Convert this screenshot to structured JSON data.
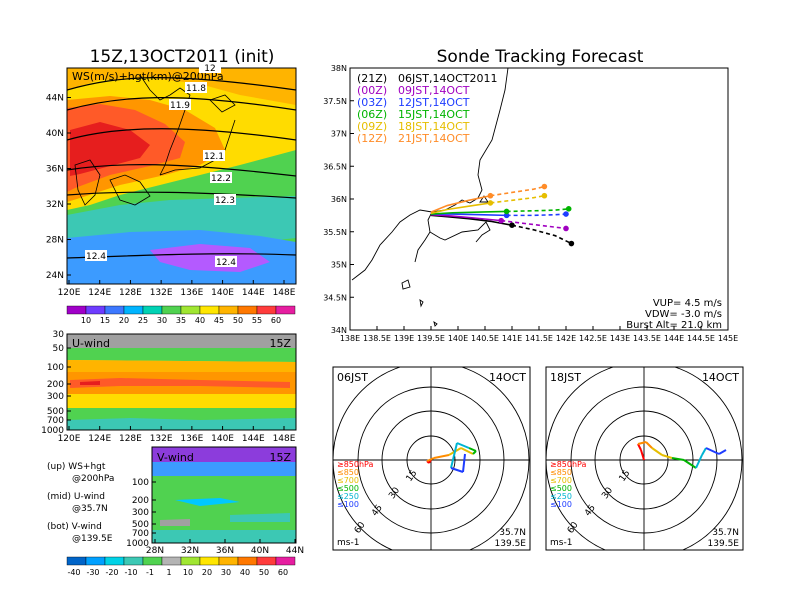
{
  "left_title": "15Z,13OCT2011 (init)",
  "right_title": "Sonde Tracking Forecast",
  "ws_panel": {
    "label": "WS(m/s)+hgt(km)@200hPa",
    "x_ticks": [
      "120E",
      "124E",
      "128E",
      "132E",
      "136E",
      "140E",
      "144E",
      "148E"
    ],
    "y_ticks": [
      "24N",
      "28N",
      "32N",
      "36N",
      "40N",
      "44N"
    ],
    "contour_labels": [
      "11.8",
      "11.9",
      "12.1",
      "12.2",
      "12.3",
      "12.4",
      "12.4",
      "12"
    ],
    "colorbar": [
      "10",
      "15",
      "20",
      "25",
      "30",
      "35",
      "40",
      "45",
      "50",
      "55",
      "60"
    ]
  },
  "u_panel": {
    "label": "U-wind",
    "time": "15Z",
    "y_ticks": [
      "30",
      "50",
      "100",
      "200",
      "300",
      "500",
      "700",
      "1000"
    ],
    "x_ticks": [
      "120E",
      "124E",
      "128E",
      "132E",
      "136E",
      "140E",
      "144E",
      "148E"
    ]
  },
  "v_panel": {
    "label": "V-wind",
    "time": "15Z",
    "y_ticks": [
      "100",
      "200",
      "300",
      "500",
      "700",
      "1000"
    ],
    "x_ticks": [
      "28N",
      "32N",
      "36N",
      "40N",
      "44N"
    ]
  },
  "legend_notes": [
    {
      "left": "(up) WS+hgt",
      "right": "@200hPa"
    },
    {
      "left": "(mid) U-wind",
      "right": "@35.7N"
    },
    {
      "left": "(bot) V-wind",
      "right": "@139.5E"
    }
  ],
  "wind_colorbar": [
    "-40",
    "-30",
    "-20",
    "-10",
    "-1",
    "1",
    "10",
    "20",
    "30",
    "40",
    "50",
    "60"
  ],
  "track_map": {
    "x_ticks": [
      "138E",
      "138.5E",
      "139E",
      "139.5E",
      "140E",
      "140.5E",
      "141E",
      "141.5E",
      "142E",
      "142.5E",
      "143E",
      "143.5E",
      "144E",
      "144.5E",
      "145E"
    ],
    "y_ticks": [
      "34N",
      "34.5N",
      "35N",
      "35.5N",
      "36N",
      "36.5N",
      "37N",
      "37.5N",
      "38N"
    ],
    "launches": [
      {
        "utc": "(21Z)",
        "jst": "06JST,14OCT2011",
        "color": "#000000"
      },
      {
        "utc": "(00Z)",
        "jst": "09JST,14OCT",
        "color": "#a000c0"
      },
      {
        "utc": "(03Z)",
        "jst": "12JST,14OCT",
        "color": "#1e3cff"
      },
      {
        "utc": "(06Z)",
        "jst": "15JST,14OCT",
        "color": "#00b400"
      },
      {
        "utc": "(09Z)",
        "jst": "18JST,14OCT",
        "color": "#e6be00"
      },
      {
        "utc": "(12Z)",
        "jst": "21JST,14OCT",
        "color": "#ff8c28"
      }
    ],
    "params": [
      "VUP= 4.5 m/s",
      "VDW= -3.0 m/s",
      "Burst Alt= 21.0 km"
    ]
  },
  "hodographs": [
    {
      "time": "06JST",
      "date": "14OCT",
      "rings": [
        "15",
        "30",
        "45",
        "60"
      ],
      "unit": "ms-1",
      "lat": "35.7N",
      "lon": "139.5E"
    },
    {
      "time": "18JST",
      "date": "14OCT",
      "rings": [
        "15",
        "30",
        "45",
        "60"
      ],
      "unit": "ms-1",
      "lat": "35.7N",
      "lon": "139.5E"
    }
  ],
  "hodo_legend": [
    "≥850hPa",
    "≤850",
    "≤700",
    "≤500",
    "≤250",
    "≤100"
  ],
  "colors": {
    "jet_red": "#ff3232",
    "jet_orange": "#ff9600",
    "jet_yellow": "#e6dc32",
    "green": "#50d250",
    "cyan": "#00c8c8",
    "blue": "#3c78ff"
  },
  "chart_data": [
    {
      "type": "line",
      "title": "Sonde Tracking Forecast",
      "xlabel": "",
      "ylabel": "",
      "xlim": [
        138,
        145
      ],
      "ylim": [
        34,
        38
      ],
      "series": [
        {
          "name": "(21Z) 06JST,14OCT2011",
          "x": [
            139.5,
            139.8,
            140.2,
            140.6,
            141.0,
            141.4,
            141.8,
            142.1
          ],
          "y": [
            35.75,
            35.73,
            35.7,
            35.66,
            35.6,
            35.53,
            35.44,
            35.32
          ]
        },
        {
          "name": "(00Z) 09JST,14OCT",
          "x": [
            139.5,
            139.9,
            140.3,
            140.8,
            141.3,
            141.7,
            142.0
          ],
          "y": [
            35.76,
            35.74,
            35.71,
            35.67,
            35.62,
            35.58,
            35.55
          ]
        },
        {
          "name": "(03Z) 12JST,14OCT",
          "x": [
            139.5,
            139.9,
            140.4,
            140.9,
            141.4,
            141.8,
            142.0
          ],
          "y": [
            35.77,
            35.77,
            35.76,
            35.75,
            35.75,
            35.76,
            35.77
          ]
        },
        {
          "name": "(06Z) 15JST,14OCT",
          "x": [
            139.5,
            139.9,
            140.4,
            140.9,
            141.4,
            141.8,
            142.05
          ],
          "y": [
            35.77,
            35.79,
            35.8,
            35.81,
            35.82,
            35.83,
            35.85
          ]
        },
        {
          "name": "(09Z) 18JST,14OCT",
          "x": [
            139.5,
            139.8,
            140.2,
            140.6,
            141.0,
            141.4,
            141.6
          ],
          "y": [
            35.78,
            35.84,
            35.89,
            35.94,
            35.98,
            36.02,
            36.05
          ]
        },
        {
          "name": "(12Z) 21JST,14OCT",
          "x": [
            139.5,
            139.8,
            140.2,
            140.6,
            141.0,
            141.4,
            141.6
          ],
          "y": [
            35.8,
            35.9,
            35.98,
            36.05,
            36.1,
            36.15,
            36.19
          ]
        }
      ]
    }
  ]
}
